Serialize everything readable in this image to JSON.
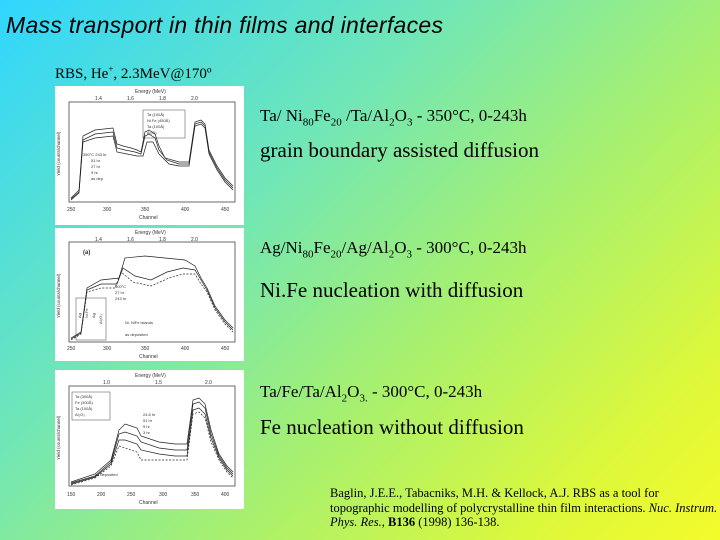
{
  "slide": {
    "title": "Mass transport in thin films and interfaces",
    "subtitle_pre": "RBS, He",
    "subtitle_sup": "+",
    "subtitle_post": ", 2.3MeV@170º"
  },
  "experiments": [
    {
      "system_parts": [
        "Ta/ Ni",
        "80",
        "Fe",
        "20",
        " /Ta/Al",
        "2",
        "O",
        "3",
        " - 350°C, 0-243h"
      ],
      "note": "grain boundary assisted diffusion"
    },
    {
      "system_parts": [
        "Ag/Ni",
        "80",
        "Fe",
        "20",
        "/Ag/Al",
        "2",
        "O",
        "3",
        " - 300°C, 0-243h"
      ],
      "note": "Ni.Fe nucleation with diffusion"
    },
    {
      "system_parts": [
        "Ta/Fe/Ta/Al",
        "2",
        "O",
        "3.",
        " - 300°C, 0-243h"
      ],
      "note": "Fe nucleation without diffusion"
    }
  ],
  "reference": {
    "authors": "Baglin, J.E.E., Tabacniks, M.H. & Kellock, A.J. RBS as a tool for topographic modelling of polycrystalline thin film interactions.",
    "journal": "Nuc. Instrum. Phys. Res.",
    "volume": "B136",
    "pages": " (1998) 136-138."
  },
  "plots": [
    {
      "top_axis_label": "Energy (MeV)",
      "top_ticks": [
        "1.4",
        "1.6",
        "1.8",
        "2.0"
      ],
      "bottom_ticks": [
        "250",
        "300",
        "350",
        "400",
        "450"
      ],
      "bottom_axis_label": "Channel",
      "y_label": "Yield (counts/channel)",
      "legend": [
        "Ta (100Å)",
        "Ni.Fe (450Å)",
        "Ta (100Å)",
        "Al₂O₃"
      ],
      "annotations": [
        "350°C 243 hr",
        "51 hr",
        "27 hr",
        "9 hr",
        "as dep"
      ]
    },
    {
      "top_axis_label": "Energy (MeV)",
      "top_ticks": [
        "1.4",
        "1.6",
        "1.8",
        "2.0"
      ],
      "bottom_ticks": [
        "250",
        "300",
        "350",
        "400",
        "450"
      ],
      "bottom_axis_label": "Channel",
      "y_label": "Yield (counts/channel)",
      "legend": [
        "Ag",
        "Ni.Fe",
        "Ag",
        "Al₂O₃"
      ],
      "annotations": [
        "(a)",
        "300°C",
        "27 hr",
        "243 hr",
        "Ni, NiFe islands",
        "as deposited"
      ]
    },
    {
      "top_axis_label": "Energy (MeV)",
      "top_ticks": [
        "1.0",
        "1.5",
        "2.0"
      ],
      "bottom_ticks": [
        "150",
        "200",
        "250",
        "300",
        "350",
        "400"
      ],
      "bottom_axis_label": "Channel",
      "y_label": "Yield (counts/channel)",
      "legend": [
        "Ta (300Å)",
        "Fe (300Å)",
        "Ta (100Å)",
        "Al₂O₃"
      ],
      "annotations": [
        "24.8 hr",
        "51 hr",
        "9 hr",
        "3 hr",
        "as deposited"
      ]
    }
  ]
}
